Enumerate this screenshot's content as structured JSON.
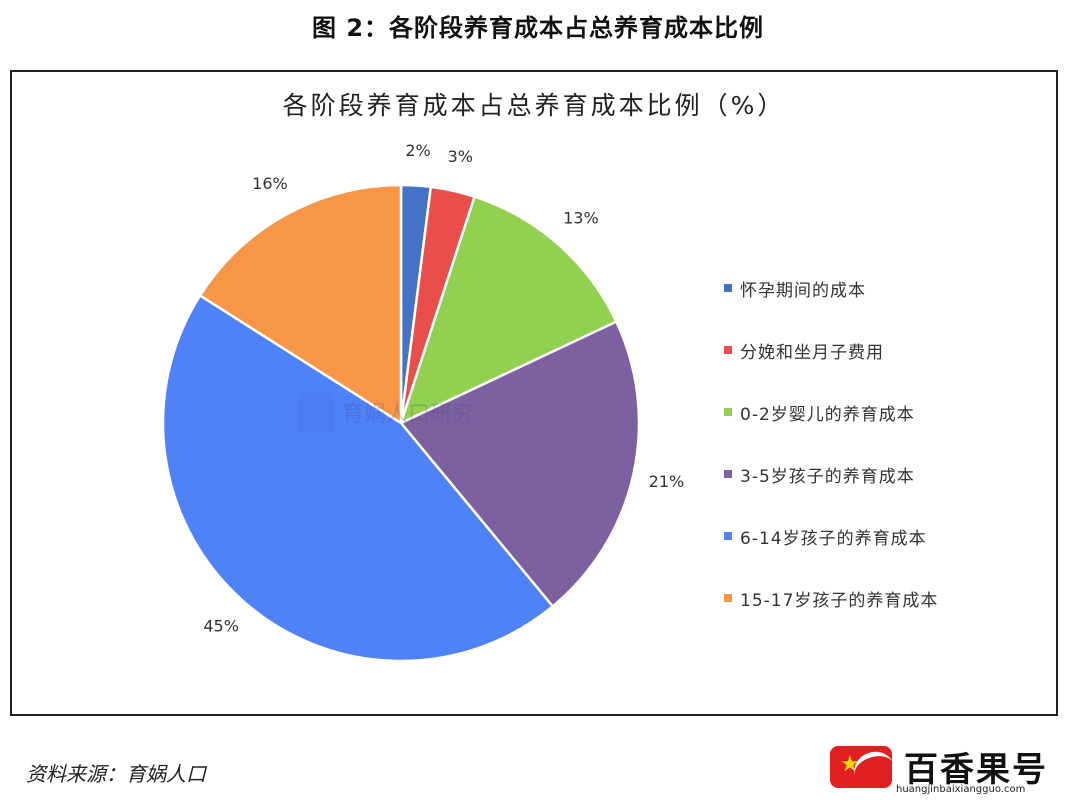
{
  "figure_caption": "图 2：各阶段养育成本占总养育成本比例",
  "source_note": "资料来源：育娲人口",
  "watermark_text": "育娲人口研究",
  "site_badge": {
    "name": "百香果号",
    "url": "huangjinbaixiangguo.com"
  },
  "chart_data": {
    "type": "pie",
    "title": "各阶段养育成本占总养育成本比例（%）",
    "start_angle_deg": 0,
    "direction": "clockwise",
    "legend_position": "right",
    "slices": [
      {
        "label": "怀孕期间的成本",
        "value": 2,
        "display": "2%",
        "color": "#4472c4"
      },
      {
        "label": "分娩和坐月子费用",
        "value": 3,
        "display": "3%",
        "color": "#e94e4b"
      },
      {
        "label": "0-2岁婴儿的养育成本",
        "value": 13,
        "display": "13%",
        "color": "#92d050"
      },
      {
        "label": "3-5岁孩子的养育成本",
        "value": 21,
        "display": "21%",
        "color": "#7d60a0"
      },
      {
        "label": "6-14岁孩子的养育成本",
        "value": 45,
        "display": "45%",
        "color": "#4f81f7"
      },
      {
        "label": "15-17岁孩子的养育成本",
        "value": 16,
        "display": "16%",
        "color": "#f79646"
      }
    ]
  }
}
